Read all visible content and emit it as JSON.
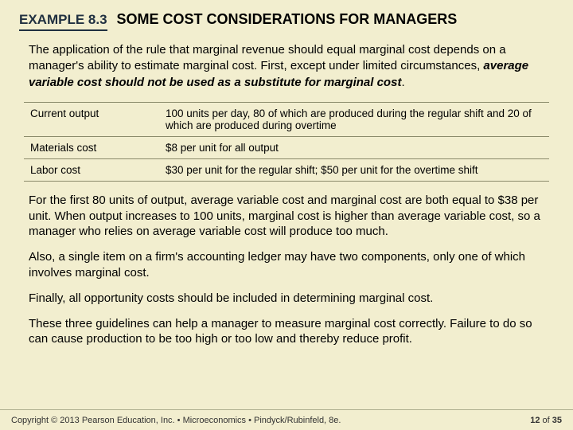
{
  "header": {
    "example_label": "EXAMPLE 8.3",
    "title": "SOME COST CONSIDERATIONS FOR MANAGERS"
  },
  "intro": {
    "before_emph": "The application of the rule that marginal revenue should equal marginal cost depends on a manager's ability to estimate marginal cost. First, except under limited circumstances, ",
    "emph": "average variable cost should not be used as a substitute for marginal cost",
    "after_emph": "."
  },
  "table": {
    "rows": [
      {
        "label": "Current output",
        "value": "100 units per day, 80 of which are produced during the regular shift and 20 of which are produced during overtime"
      },
      {
        "label": "Materials cost",
        "value": "$8 per unit for all output"
      },
      {
        "label": "Labor cost",
        "value": "$30 per unit for the regular shift; $50 per unit for the overtime shift"
      }
    ]
  },
  "paragraphs": [
    "For the first 80 units of output, average variable cost and marginal cost are both equal to $38 per unit.  When output increases to 100 units, marginal cost is higher than average variable cost, so a manager who relies on average variable cost will produce too much.",
    "Also, a single item on a firm's accounting ledger may have two components, only one of which involves marginal cost.",
    "Finally, all opportunity costs should be included in determining marginal cost.",
    "These three guidelines can help a manager to measure marginal cost correctly. Failure to do so can cause production to be too high or too low and thereby reduce profit."
  ],
  "footer": {
    "copyright": "Copyright © 2013  Pearson Education, Inc. •  Microeconomics  •  Pindyck/Rubinfeld, 8e.",
    "page_current": "12",
    "page_sep": " of ",
    "page_total": "35"
  },
  "colors": {
    "background": "#f2eecf",
    "rule": "#8a8a6a",
    "text": "#000000",
    "header_dark": "#203040"
  }
}
